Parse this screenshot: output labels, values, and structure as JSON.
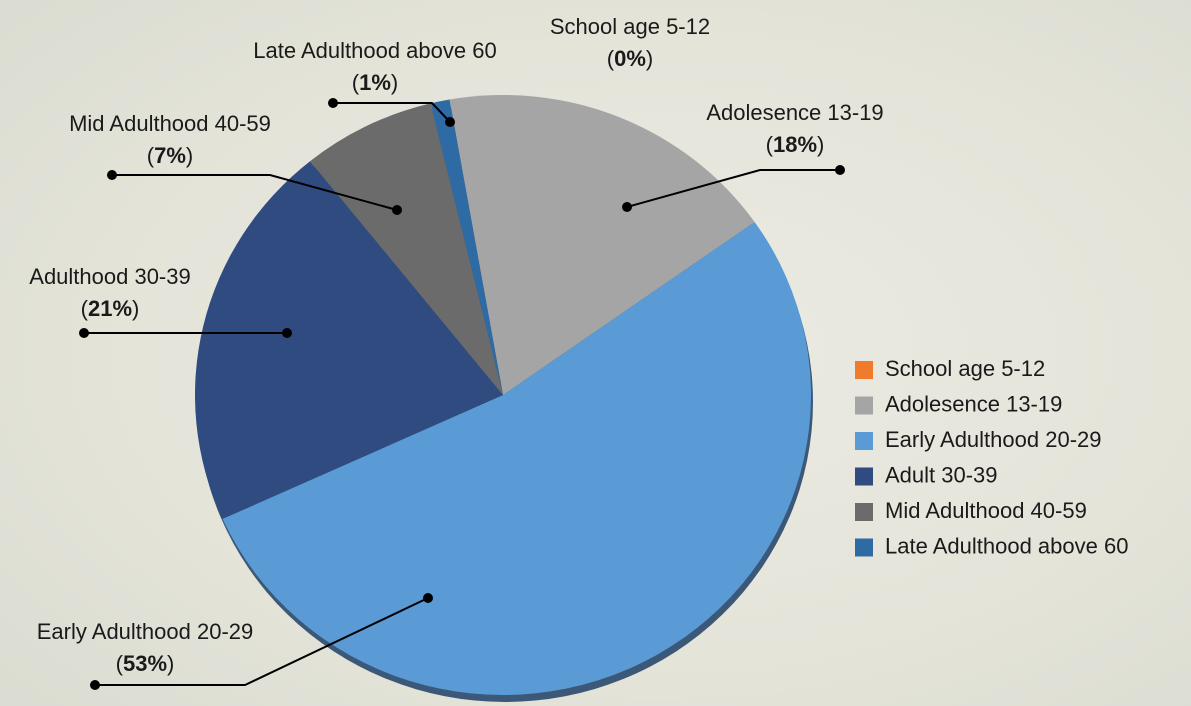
{
  "chart_data": {
    "type": "pie",
    "categories": [
      "School age 5-12",
      "Adolesence 13-19",
      "Early Adulthood 20-29",
      "Adult 30-39",
      "Mid Adulthood 40-59",
      "Late Adulthood above 60"
    ],
    "callout_labels": [
      "School age 5-12",
      "Adolesence 13-19",
      "Early Adulthood 20-29",
      "Adulthood 30-39",
      "Mid Adulthood 40-59",
      "Late Adulthood above 60"
    ],
    "values": [
      0,
      18,
      53,
      21,
      7,
      1
    ],
    "value_labels": [
      "(0%)",
      "(18%)",
      "(53%)",
      "(21%)",
      "(7%)",
      "(1%)"
    ],
    "colors": [
      "#f07b2b",
      "#a5a5a5",
      "#5b9bd5",
      "#2f4b80",
      "#6b6b6b",
      "#2e6aa3"
    ],
    "legend": "right"
  }
}
